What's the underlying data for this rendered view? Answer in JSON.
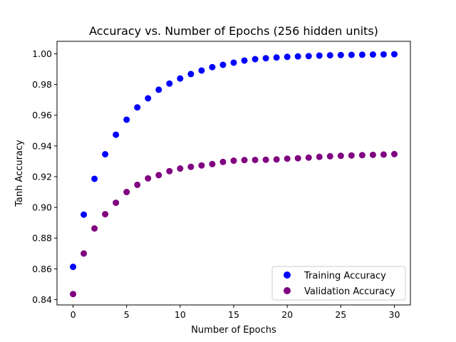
{
  "chart_data": {
    "type": "scatter",
    "title": "Accuracy vs. Number of Epochs (256 hidden units)",
    "xlabel": "Number of Epochs",
    "ylabel": "Tanh Accuracy",
    "xlim": [
      -1.5,
      31.5
    ],
    "ylim": [
      0.8365,
      1.0081
    ],
    "xticks": [
      0,
      5,
      10,
      15,
      20,
      25,
      30
    ],
    "xtick_labels": [
      "0",
      "5",
      "10",
      "15",
      "20",
      "25",
      "30"
    ],
    "yticks": [
      0.84,
      0.86,
      0.88,
      0.9,
      0.92,
      0.94,
      0.96,
      0.98,
      1.0
    ],
    "ytick_labels": [
      "0.84",
      "0.86",
      "0.88",
      "0.90",
      "0.92",
      "0.94",
      "0.96",
      "0.98",
      "1.00"
    ],
    "grid": false,
    "legend_position": "bottom-right",
    "x": [
      0,
      1,
      2,
      3,
      4,
      5,
      6,
      7,
      8,
      9,
      10,
      11,
      12,
      13,
      14,
      15,
      16,
      17,
      18,
      19,
      20,
      21,
      22,
      23,
      24,
      25,
      26,
      27,
      28,
      29,
      30
    ],
    "series": [
      {
        "name": "Training Accuracy",
        "color": "#0000ff",
        "values": [
          0.8613,
          0.8953,
          0.9186,
          0.9346,
          0.9473,
          0.9571,
          0.9651,
          0.971,
          0.9766,
          0.9806,
          0.9839,
          0.9868,
          0.9891,
          0.9913,
          0.9928,
          0.9942,
          0.9956,
          0.9965,
          0.9971,
          0.9976,
          0.998,
          0.9983,
          0.9985,
          0.9988,
          0.999,
          0.9992,
          0.9993,
          0.9994,
          0.9995,
          0.9996,
          0.9997
        ]
      },
      {
        "name": "Validation Accuracy",
        "color": "#800080",
        "values": [
          0.8436,
          0.87,
          0.8863,
          0.8956,
          0.903,
          0.91,
          0.9147,
          0.9189,
          0.921,
          0.9236,
          0.9253,
          0.9264,
          0.9273,
          0.9282,
          0.9296,
          0.9304,
          0.9308,
          0.9309,
          0.931,
          0.9312,
          0.9317,
          0.932,
          0.9324,
          0.9329,
          0.9333,
          0.9336,
          0.9338,
          0.934,
          0.9342,
          0.9344,
          0.9347
        ]
      }
    ]
  }
}
